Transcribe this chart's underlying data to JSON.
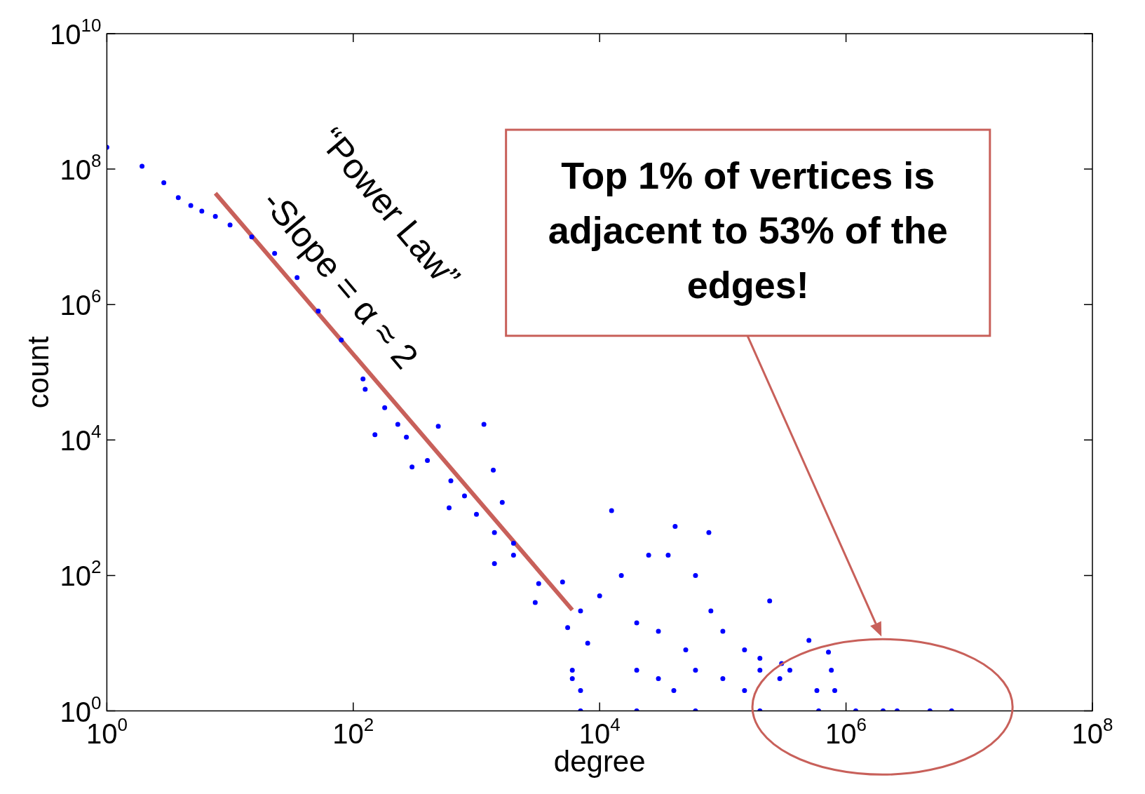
{
  "chart_data": {
    "type": "scatter",
    "xlabel": "degree",
    "ylabel": "count",
    "log": "xy",
    "grid": false,
    "legend": false,
    "marker": "circle",
    "xlim": [
      1,
      100000000
    ],
    "ylim": [
      1,
      10000000000
    ],
    "xticks": [
      {
        "value": 1,
        "label": "10$^{0}$"
      },
      {
        "value": 100,
        "label": "10$^{2}$"
      },
      {
        "value": 10000,
        "label": "10$^{4}$"
      },
      {
        "value": 1000000,
        "label": "10$^{6}$"
      },
      {
        "value": 100000000,
        "label": "10$^{8}$"
      }
    ],
    "yticks": [
      {
        "value": 1,
        "label": "10$^{0}$"
      },
      {
        "value": 100,
        "label": "10$^{2}$"
      },
      {
        "value": 10000,
        "label": "10$^{4}$"
      },
      {
        "value": 1000000,
        "label": "10$^{6}$"
      },
      {
        "value": 100000000,
        "label": "10$^{8}$"
      },
      {
        "value": 10000000000,
        "label": "10$^{10}$"
      }
    ],
    "annotations": [
      "“Power Law”",
      "-Slope = α ≈ 2",
      "Top 1% of vertices is adjacent to 53% of the edges!"
    ],
    "series": [
      {
        "type": "scatter",
        "color": "#0000ff",
        "x": [
          1,
          1.93,
          2.9,
          3.8,
          4.8,
          5.9,
          7.6,
          10,
          15,
          23,
          35,
          52,
          80,
          120,
          125,
          150,
          180,
          230,
          270,
          300,
          400,
          490,
          600,
          620,
          800,
          1000,
          1150,
          1370,
          1400,
          1400,
          1620,
          2000,
          2000,
          3000,
          3200,
          5000,
          5500,
          7000,
          8000,
          10000,
          12500,
          15000,
          20000,
          25000,
          30000,
          36000,
          41000,
          50000,
          60000,
          77000,
          80000,
          100000,
          150000,
          200000,
          240000,
          300000,
          500000,
          720000,
          760000,
          810000,
          6000,
          20000,
          60000,
          200000,
          350000,
          6000,
          30000,
          100000,
          290000,
          7000,
          40000,
          150000,
          580000,
          7000,
          20000,
          60000,
          200000,
          600000,
          1200000,
          2000000,
          2600000,
          4800000,
          7200000
        ],
        "values": [
          210000000,
          110000000,
          63000000,
          38000000,
          29000000,
          24000000,
          20000000,
          15000000,
          10000000,
          5700000,
          2500000,
          800000,
          300000,
          80000,
          56000,
          12000,
          30000,
          17000,
          11000,
          4000,
          5000,
          16000,
          1000,
          2500,
          1500,
          800,
          17000,
          3600,
          430,
          150,
          1200,
          200,
          300,
          40,
          76,
          80,
          17,
          30,
          10,
          50,
          910,
          100,
          20,
          200,
          15,
          200,
          530,
          8,
          100,
          430,
          30,
          15,
          8,
          6,
          42,
          5,
          11,
          7.4,
          4,
          2,
          4,
          4,
          4,
          4,
          4,
          3,
          3,
          3,
          3,
          2,
          2,
          2,
          2,
          1,
          1,
          1,
          1,
          1,
          1,
          1,
          1,
          1,
          1
        ]
      },
      {
        "type": "line",
        "color": "#c8605a",
        "marker": "none",
        "x": [
          7.6,
          6000
        ],
        "values": [
          44000000,
          31
        ]
      }
    ]
  }
}
